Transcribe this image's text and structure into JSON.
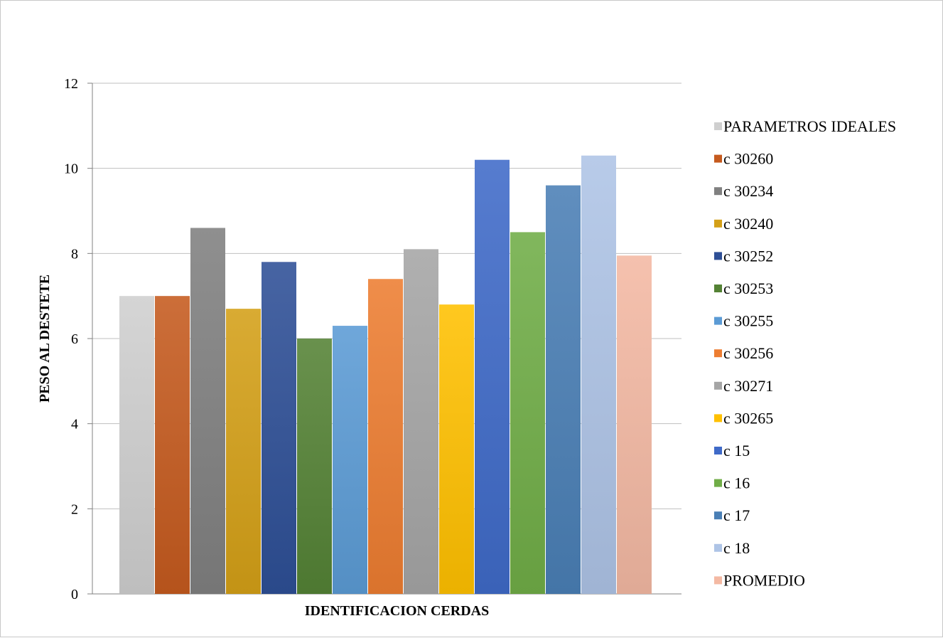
{
  "chart_data": {
    "type": "bar",
    "xlabel": "IDENTIFICACION CERDAS",
    "ylabel": "PESO AL DESTETE",
    "ylim": [
      0,
      12
    ],
    "y_ticks": [
      "0",
      "2",
      "4",
      "6",
      "8",
      "10",
      "12"
    ],
    "grid": true,
    "legend_position": "right",
    "series": [
      {
        "name": "PARAMETROS IDEALES",
        "values": [
          7.0
        ],
        "color": "#cfcfcf"
      },
      {
        "name": " c 30260",
        "values": [
          7.0
        ],
        "color": "#c55a1e"
      },
      {
        "name": "c 30234",
        "values": [
          8.6
        ],
        "color": "#808080"
      },
      {
        "name": "c 30240",
        "values": [
          6.7
        ],
        "color": "#d4a017"
      },
      {
        "name": "c 30252",
        "values": [
          7.8
        ],
        "color": "#2e4f96"
      },
      {
        "name": "c 30253",
        "values": [
          6.0
        ],
        "color": "#548235"
      },
      {
        "name": "c 30255",
        "values": [
          6.3
        ],
        "color": "#5b9bd5"
      },
      {
        "name": "c 30256",
        "values": [
          7.4
        ],
        "color": "#ed7d31"
      },
      {
        "name": "c 30271",
        "values": [
          8.1
        ],
        "color": "#a5a5a5"
      },
      {
        "name": "c 30265",
        "values": [
          6.8
        ],
        "color": "#ffc000"
      },
      {
        "name": "c 15",
        "values": [
          10.2
        ],
        "color": "#3f6ac8"
      },
      {
        "name": "c 16",
        "values": [
          8.5
        ],
        "color": "#70ad47"
      },
      {
        "name": "c 17",
        "values": [
          9.6
        ],
        "color": "#4a7fb5"
      },
      {
        "name": "c 18",
        "values": [
          10.3
        ],
        "color": "#aec4e6"
      },
      {
        "name": "PROMEDIO",
        "values": [
          7.95
        ],
        "color": "#f4b9a3"
      }
    ]
  }
}
